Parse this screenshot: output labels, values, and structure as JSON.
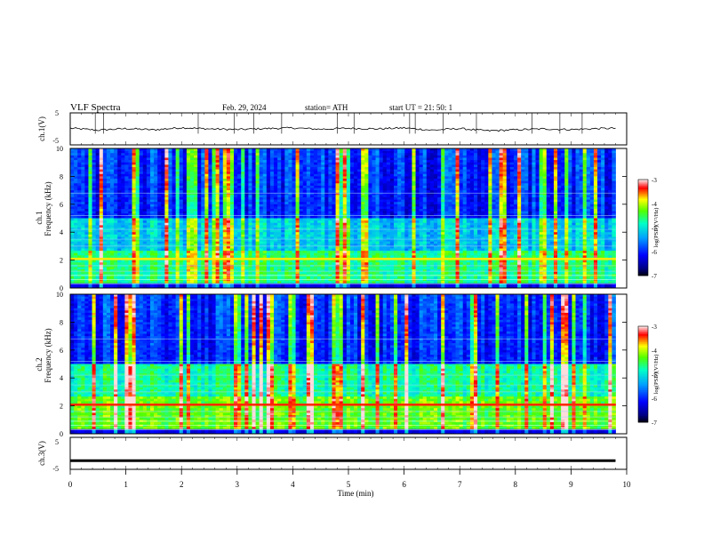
{
  "header": {
    "title": "VLF  Spectra",
    "date": "Feb. 29, 2024",
    "station": "station= ATH",
    "start": "start  UT  =   21: 50: 1"
  },
  "chart_data": [
    {
      "type": "line",
      "id": "ch1-voltage",
      "ylabel": "ch.1(V)",
      "ylim": [
        -5,
        5
      ],
      "yticks": [
        "5",
        "-5"
      ],
      "xlim": [
        0,
        10
      ],
      "description_series": [
        {
          "x": [
            0,
            0.5,
            1,
            1.5,
            2,
            2.5,
            3,
            3.5,
            4,
            4.5,
            5,
            5.5,
            6,
            6.5,
            7,
            7.5,
            8,
            8.5,
            9,
            9.5,
            9.8
          ],
          "values": [
            0.2,
            -0.4,
            0.1,
            -0.3,
            0.4,
            0.0,
            -0.2,
            0.1,
            0.3,
            -0.1,
            0.2,
            0.0,
            0.3,
            -0.4,
            0.1,
            -0.6,
            -0.3,
            0.0,
            -0.2,
            0.1,
            0.2
          ]
        }
      ]
    },
    {
      "type": "heatmap",
      "id": "ch1-spectrogram",
      "ylabel": "ch.1\nFrequency  (kHz)",
      "ylim": [
        0,
        10
      ],
      "yticks": [
        "0",
        "2",
        "4",
        "6",
        "8",
        "10"
      ],
      "xlim": [
        0,
        10
      ],
      "colorbar": {
        "label": "log(PSD)(V²/Hz)",
        "range": [
          -7,
          -3
        ],
        "ticks": [
          "-3",
          "-4",
          "-5",
          "-6",
          "-7"
        ]
      }
    },
    {
      "type": "heatmap",
      "id": "ch2-spectrogram",
      "ylabel": "ch.2\nFrequency  (kHz)",
      "ylim": [
        0,
        10
      ],
      "yticks": [
        "0",
        "2",
        "4",
        "6",
        "8",
        "10"
      ],
      "xlim": [
        0,
        10
      ],
      "colorbar": {
        "label": "log(PSD)(V²/Hz)",
        "range": [
          -7,
          -3
        ],
        "ticks": [
          "-3",
          "-4",
          "-5",
          "-6",
          "-7"
        ]
      }
    },
    {
      "type": "line",
      "id": "ch3-voltage",
      "ylabel": "ch.3(V)",
      "ylim": [
        -5,
        5
      ],
      "yticks": [
        "5",
        "-5"
      ],
      "xlim": [
        0,
        10
      ],
      "series": [
        {
          "x": [
            0,
            9.8
          ],
          "values": [
            -2.3,
            -2.3
          ]
        }
      ]
    }
  ],
  "xaxis": {
    "label": "Time  (min)",
    "ticks": [
      "0",
      "1",
      "2",
      "3",
      "4",
      "5",
      "6",
      "7",
      "8",
      "9",
      "10"
    ]
  },
  "colors": {
    "colormap": [
      "#000000",
      "#0000ff",
      "#00c8ff",
      "#00ff00",
      "#ffff00",
      "#ff0000",
      "#ffffff"
    ]
  }
}
